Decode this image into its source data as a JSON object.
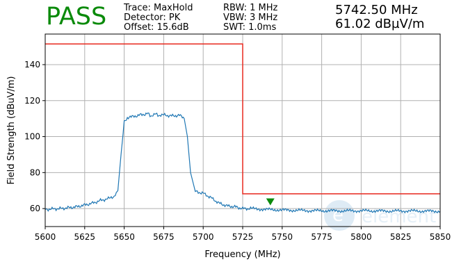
{
  "header": {
    "verdict": "PASS",
    "trace": "Trace: MaxHold",
    "detector": "Detector: PK",
    "offset": "Offset: 15.6dB",
    "rbw": "RBW: 1 MHz",
    "vbw": "VBW: 3 MHz",
    "swt": "SWT: 1.0ms",
    "marker_freq": "5742.50 MHz",
    "marker_level": "61.02 dBµV/m"
  },
  "colors": {
    "trace": "#1f77b4",
    "limit": "#e8281e",
    "marker": "#0b8a0b",
    "verdict": "#0a8a0a"
  },
  "chart_data": {
    "type": "line",
    "xlabel": "Frequency (MHz)",
    "ylabel": "Field Strength (dBuV/m)",
    "xlim": [
      5600,
      5850
    ],
    "ylim": [
      50,
      157
    ],
    "xticks": [
      5600,
      5625,
      5650,
      5675,
      5700,
      5725,
      5750,
      5775,
      5800,
      5825,
      5850
    ],
    "yticks": [
      60,
      80,
      100,
      120,
      140
    ],
    "grid": true,
    "series": [
      {
        "role": "trace",
        "x": [
          5600,
          5605,
          5610,
          5615,
          5620,
          5625,
          5630,
          5635,
          5640,
          5643,
          5645,
          5646,
          5648,
          5650,
          5652,
          5655,
          5660,
          5665,
          5667,
          5670,
          5672,
          5675,
          5680,
          5685,
          5688,
          5690,
          5692,
          5695,
          5700,
          5705,
          5710,
          5715,
          5720,
          5725,
          5730,
          5740,
          5750,
          5760,
          5770,
          5780,
          5790,
          5800,
          5810,
          5820,
          5830,
          5840,
          5850
        ],
        "y": [
          59.5,
          59.8,
          60.0,
          60.5,
          61.0,
          62.0,
          63.0,
          64.5,
          65.5,
          66.5,
          68.0,
          70.0,
          90.0,
          108.0,
          110.5,
          111.0,
          112.0,
          112.8,
          111.5,
          112.5,
          111.8,
          112.0,
          111.5,
          111.8,
          110.0,
          100.0,
          80.0,
          69.5,
          68.5,
          66.0,
          63.0,
          61.5,
          61.0,
          60.0,
          60.0,
          59.5,
          59.2,
          59.0,
          58.8,
          58.8,
          58.7,
          58.8,
          58.7,
          58.6,
          58.7,
          58.6,
          58.5
        ]
      },
      {
        "role": "limit",
        "x": [
          5600,
          5725,
          5725,
          5850
        ],
        "y": [
          151.5,
          151.5,
          68.2,
          68.2
        ]
      }
    ],
    "marker": {
      "x": 5742.5,
      "y": 61.02
    }
  }
}
